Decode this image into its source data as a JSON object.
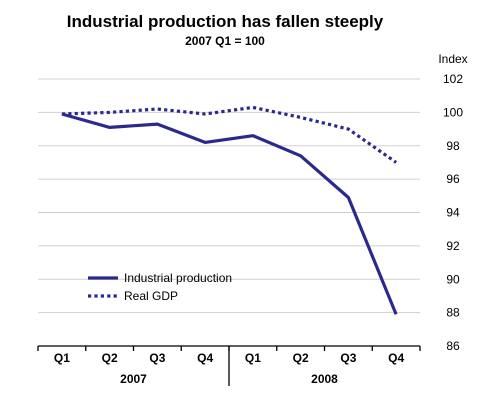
{
  "chart_data": {
    "type": "line",
    "title": "Industrial production has fallen steeply",
    "subtitle": "2007 Q1 = 100",
    "ylabel": "Index",
    "ylim": [
      86,
      102
    ],
    "yticks": [
      86,
      88,
      90,
      92,
      94,
      96,
      98,
      100,
      102
    ],
    "grid": true,
    "legend_position": "lower-left",
    "categories": [
      "Q1",
      "Q2",
      "Q3",
      "Q4",
      "Q1",
      "Q2",
      "Q3",
      "Q4"
    ],
    "years": [
      {
        "label": "2007",
        "start": 0,
        "end": 3
      },
      {
        "label": "2008",
        "start": 4,
        "end": 7
      }
    ],
    "series": [
      {
        "name": "Industrial production",
        "style": "solid",
        "color": "#2b2a8c",
        "values": [
          99.9,
          99.1,
          99.3,
          98.2,
          98.6,
          97.4,
          94.9,
          87.9
        ]
      },
      {
        "name": "Real GDP",
        "style": "dotted",
        "color": "#2b2a8c",
        "values": [
          99.9,
          100.0,
          100.2,
          99.9,
          100.3,
          99.7,
          99.0,
          97.0
        ]
      }
    ]
  }
}
